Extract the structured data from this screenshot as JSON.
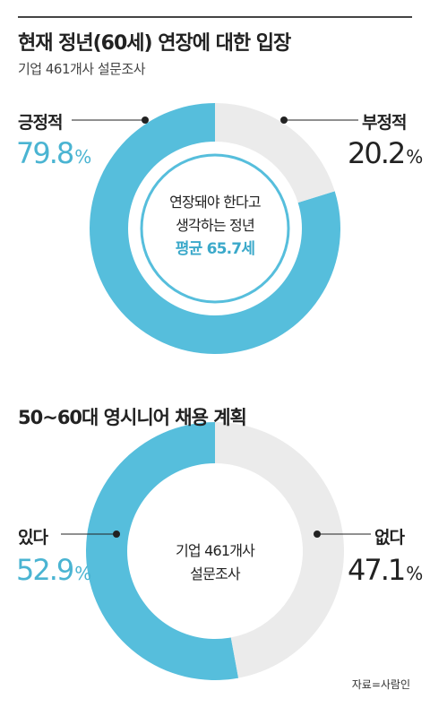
{
  "title": "현재 정년(60세) 연장에 대한 입장",
  "subtitle": "기업 461개사 설문조사",
  "source": "자료=사람인",
  "colors": {
    "primary": "#56bedc",
    "secondary": "#ebebeb",
    "accent_text": "#4ab4d2"
  },
  "chart_data": [
    {
      "type": "pie",
      "title": "현재 정년(60세) 연장에 대한 입장",
      "subtitle": "기업 461개사 설문조사",
      "slices": [
        {
          "label": "긍정적",
          "value": 79.8,
          "display": "79.8",
          "unit": "%",
          "color": "#56bedc"
        },
        {
          "label": "부정적",
          "value": 20.2,
          "display": "20.2",
          "unit": "%",
          "color": "#ebebeb"
        }
      ],
      "center": {
        "line1": "연장돼야 한다고",
        "line2": "생각하는 정년",
        "highlight": "평균 65.7세"
      }
    },
    {
      "type": "pie",
      "title": "50~60대 영시니어 채용 계획",
      "slices": [
        {
          "label": "있다",
          "value": 52.9,
          "display": "52.9",
          "unit": "%",
          "color": "#56bedc"
        },
        {
          "label": "없다",
          "value": 47.1,
          "display": "47.1",
          "unit": "%",
          "color": "#ebebeb"
        }
      ],
      "center": {
        "line1": "기업 461개사",
        "line2": "설문조사"
      }
    }
  ]
}
